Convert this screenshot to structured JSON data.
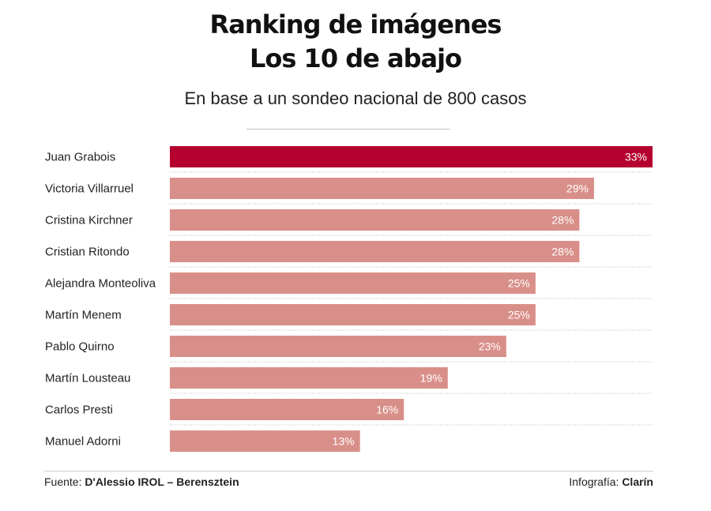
{
  "title_line1": "Ranking de imágenes",
  "title_line2": "Los 10 de abajo",
  "subtitle": "En base a un sondeo nacional de 800 casos",
  "footer": {
    "source_prefix": "Fuente: ",
    "source_name": "D'Alessio IROL – Berensztein",
    "credit_prefix": "Infografía: ",
    "credit_name": "Clarín"
  },
  "colors": {
    "highlight": "#b5002f",
    "bar": "#d98f89"
  },
  "chart_data": {
    "type": "bar",
    "orientation": "horizontal",
    "categories": [
      "Juan Grabois",
      "Victoria Villarruel",
      "Cristina Kirchner",
      "Cristian Ritondo",
      "Alejandra Monteoliva",
      "Martín Menem",
      "Pablo Quirno",
      "Martín Lousteau",
      "Carlos Presti",
      "Manuel Adorni"
    ],
    "values": [
      33,
      29,
      28,
      28,
      25,
      25,
      23,
      19,
      16,
      13
    ],
    "value_labels": [
      "33%",
      "29%",
      "28%",
      "28%",
      "25%",
      "25%",
      "23%",
      "19%",
      "16%",
      "13%"
    ],
    "unit": "%",
    "highlighted_index": 0,
    "xlim": [
      0,
      33
    ],
    "grid": false,
    "title": "Ranking de imágenes — Los 10 de abajo"
  }
}
